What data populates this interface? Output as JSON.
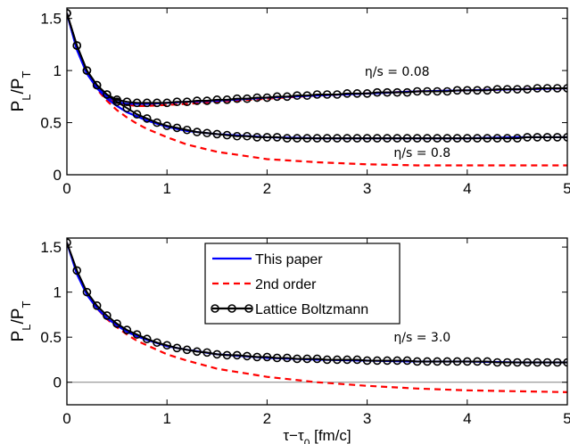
{
  "chart_data": [
    {
      "type": "line",
      "xlim": [
        0,
        5
      ],
      "ylim": [
        0,
        1.6
      ],
      "x_ticks": [
        "0",
        "1",
        "2",
        "3",
        "4",
        "5"
      ],
      "y_ticks": [
        "0",
        "0.5",
        "1",
        "1.5"
      ],
      "xlabel": "",
      "ylabel": "P_L/P_T",
      "grid": false,
      "annotations": [
        {
          "text": "η/s = 0.08",
          "x": 3.3,
          "y": 0.95
        },
        {
          "text": "η/s = 0.8",
          "x": 3.55,
          "y": 0.17
        }
      ],
      "series": [
        {
          "label": "η/s = 0.08",
          "role": "lattice",
          "x": [
            0,
            0.1,
            0.2,
            0.3,
            0.4,
            0.5,
            0.6,
            0.7,
            0.8,
            0.9,
            1.0,
            1.1,
            1.2,
            1.3,
            1.4,
            1.5,
            1.6,
            1.7,
            1.8,
            1.9,
            2.0,
            2.1,
            2.2,
            2.3,
            2.4,
            2.5,
            2.6,
            2.7,
            2.8,
            2.9,
            3.0,
            3.1,
            3.2,
            3.3,
            3.4,
            3.5,
            3.6,
            3.7,
            3.8,
            3.9,
            4.0,
            4.1,
            4.2,
            4.3,
            4.4,
            4.5,
            4.6,
            4.7,
            4.8,
            4.9,
            5.0
          ],
          "y": [
            1.55,
            1.24,
            1.0,
            0.86,
            0.77,
            0.72,
            0.7,
            0.69,
            0.69,
            0.69,
            0.69,
            0.7,
            0.7,
            0.71,
            0.71,
            0.72,
            0.72,
            0.73,
            0.73,
            0.74,
            0.74,
            0.75,
            0.75,
            0.76,
            0.76,
            0.77,
            0.77,
            0.77,
            0.78,
            0.78,
            0.78,
            0.79,
            0.79,
            0.79,
            0.79,
            0.8,
            0.8,
            0.8,
            0.8,
            0.81,
            0.81,
            0.81,
            0.81,
            0.82,
            0.82,
            0.82,
            0.82,
            0.83,
            0.83,
            0.83,
            0.83
          ]
        },
        {
          "label": "η/s = 0.08",
          "role": "this_paper",
          "x": [
            0,
            0.1,
            0.2,
            0.3,
            0.4,
            0.5,
            0.6,
            0.7,
            0.8,
            1.0,
            1.2,
            1.5,
            2.0,
            2.5,
            3.0,
            3.5,
            4.0,
            4.5,
            5.0
          ],
          "y": [
            1.55,
            1.2,
            0.97,
            0.84,
            0.75,
            0.7,
            0.68,
            0.68,
            0.68,
            0.69,
            0.7,
            0.71,
            0.74,
            0.76,
            0.78,
            0.8,
            0.81,
            0.82,
            0.83
          ]
        },
        {
          "label": "η/s = 0.08",
          "role": "second_order",
          "x": [
            0,
            0.1,
            0.2,
            0.3,
            0.4,
            0.5,
            0.6,
            0.7,
            0.8,
            1.0,
            1.2,
            1.5,
            2.0,
            2.5,
            3.0,
            3.5,
            4.0,
            4.5,
            5.0
          ],
          "y": [
            1.55,
            1.22,
            0.98,
            0.84,
            0.74,
            0.69,
            0.67,
            0.66,
            0.66,
            0.67,
            0.68,
            0.7,
            0.73,
            0.76,
            0.78,
            0.8,
            0.81,
            0.82,
            0.83
          ]
        },
        {
          "label": "η/s = 0.8",
          "role": "lattice",
          "x": [
            0,
            0.1,
            0.2,
            0.3,
            0.4,
            0.5,
            0.6,
            0.7,
            0.8,
            0.9,
            1.0,
            1.1,
            1.2,
            1.3,
            1.4,
            1.5,
            1.6,
            1.7,
            1.8,
            1.9,
            2.0,
            2.1,
            2.2,
            2.3,
            2.4,
            2.5,
            2.6,
            2.7,
            2.8,
            2.9,
            3.0,
            3.1,
            3.2,
            3.3,
            3.4,
            3.5,
            3.6,
            3.7,
            3.8,
            3.9,
            4.0,
            4.1,
            4.2,
            4.3,
            4.4,
            4.5,
            4.6,
            4.7,
            4.8,
            4.9,
            5.0
          ],
          "y": [
            1.55,
            1.24,
            1.0,
            0.86,
            0.77,
            0.7,
            0.64,
            0.58,
            0.54,
            0.5,
            0.47,
            0.45,
            0.43,
            0.41,
            0.4,
            0.39,
            0.38,
            0.37,
            0.37,
            0.36,
            0.36,
            0.36,
            0.35,
            0.35,
            0.35,
            0.35,
            0.35,
            0.35,
            0.35,
            0.35,
            0.35,
            0.35,
            0.35,
            0.35,
            0.35,
            0.35,
            0.35,
            0.35,
            0.35,
            0.35,
            0.35,
            0.35,
            0.35,
            0.35,
            0.35,
            0.35,
            0.36,
            0.36,
            0.36,
            0.36,
            0.36
          ]
        },
        {
          "label": "η/s = 0.8",
          "role": "this_paper",
          "x": [
            0,
            0.1,
            0.2,
            0.3,
            0.4,
            0.5,
            0.6,
            0.7,
            0.8,
            1.0,
            1.2,
            1.5,
            2.0,
            2.5,
            3.0,
            3.5,
            4.0,
            4.5,
            5.0
          ],
          "y": [
            1.55,
            1.2,
            0.97,
            0.83,
            0.73,
            0.66,
            0.6,
            0.56,
            0.52,
            0.46,
            0.42,
            0.39,
            0.36,
            0.35,
            0.35,
            0.35,
            0.35,
            0.36,
            0.36
          ]
        },
        {
          "label": "η/s = 0.8",
          "role": "second_order",
          "x": [
            0,
            0.1,
            0.2,
            0.3,
            0.4,
            0.5,
            0.6,
            0.7,
            0.8,
            1.0,
            1.2,
            1.5,
            2.0,
            2.5,
            3.0,
            3.5,
            4.0,
            4.5,
            5.0
          ],
          "y": [
            1.55,
            1.22,
            0.98,
            0.82,
            0.71,
            0.62,
            0.55,
            0.49,
            0.44,
            0.36,
            0.29,
            0.22,
            0.15,
            0.12,
            0.1,
            0.09,
            0.09,
            0.09,
            0.09
          ]
        }
      ]
    },
    {
      "type": "line",
      "xlim": [
        0,
        5
      ],
      "ylim": [
        -0.25,
        1.6
      ],
      "x_ticks": [
        "0",
        "1",
        "2",
        "3",
        "4",
        "5"
      ],
      "y_ticks": [
        "0",
        "0.5",
        "1",
        "1.5"
      ],
      "xlabel": "τ−τ_0 [fm/c]",
      "ylabel": "P_L/P_T",
      "grid": false,
      "zero_line": true,
      "legend": {
        "position": "top-center",
        "entries": [
          "This paper",
          "2nd order",
          "Lattice Boltzmann"
        ]
      },
      "annotations": [
        {
          "text": "η/s = 3.0",
          "x": 3.55,
          "y": 0.45
        }
      ],
      "series": [
        {
          "label": "η/s = 3.0",
          "role": "lattice",
          "x": [
            0,
            0.1,
            0.2,
            0.3,
            0.4,
            0.5,
            0.6,
            0.7,
            0.8,
            0.9,
            1.0,
            1.1,
            1.2,
            1.3,
            1.4,
            1.5,
            1.6,
            1.7,
            1.8,
            1.9,
            2.0,
            2.1,
            2.2,
            2.3,
            2.4,
            2.5,
            2.6,
            2.7,
            2.8,
            2.9,
            3.0,
            3.1,
            3.2,
            3.3,
            3.4,
            3.5,
            3.6,
            3.7,
            3.8,
            3.9,
            4.0,
            4.1,
            4.2,
            4.3,
            4.4,
            4.5,
            4.6,
            4.7,
            4.8,
            4.9,
            5.0
          ],
          "y": [
            1.55,
            1.24,
            1.0,
            0.85,
            0.74,
            0.65,
            0.58,
            0.53,
            0.48,
            0.44,
            0.41,
            0.38,
            0.36,
            0.34,
            0.33,
            0.31,
            0.3,
            0.3,
            0.29,
            0.28,
            0.28,
            0.27,
            0.27,
            0.26,
            0.26,
            0.26,
            0.25,
            0.25,
            0.25,
            0.25,
            0.24,
            0.24,
            0.24,
            0.24,
            0.24,
            0.23,
            0.23,
            0.23,
            0.23,
            0.23,
            0.23,
            0.23,
            0.23,
            0.22,
            0.22,
            0.22,
            0.22,
            0.22,
            0.22,
            0.22,
            0.22
          ]
        },
        {
          "label": "η/s = 3.0",
          "role": "this_paper",
          "x": [
            0,
            0.1,
            0.2,
            0.3,
            0.4,
            0.5,
            0.6,
            0.7,
            0.8,
            1.0,
            1.2,
            1.5,
            2.0,
            2.5,
            3.0,
            3.5,
            4.0,
            4.5,
            5.0
          ],
          "y": [
            1.55,
            1.2,
            0.97,
            0.82,
            0.71,
            0.63,
            0.56,
            0.51,
            0.47,
            0.4,
            0.36,
            0.31,
            0.27,
            0.25,
            0.24,
            0.23,
            0.23,
            0.22,
            0.22
          ]
        },
        {
          "label": "η/s = 3.0",
          "role": "second_order",
          "x": [
            0,
            0.1,
            0.2,
            0.3,
            0.4,
            0.5,
            0.6,
            0.7,
            0.8,
            1.0,
            1.2,
            1.5,
            2.0,
            2.5,
            3.0,
            3.5,
            4.0,
            4.5,
            5.0
          ],
          "y": [
            1.55,
            1.22,
            0.98,
            0.82,
            0.7,
            0.61,
            0.53,
            0.46,
            0.41,
            0.31,
            0.24,
            0.15,
            0.06,
            0.0,
            -0.04,
            -0.07,
            -0.09,
            -0.1,
            -0.11
          ]
        }
      ]
    }
  ],
  "styles": {
    "this_paper": {
      "color": "#0000ff",
      "dash": ""
    },
    "second_order": {
      "color": "#ff0000",
      "dash": "7,5"
    },
    "lattice": {
      "color": "#000000",
      "dash": ""
    }
  },
  "legend_labels": {
    "this_paper": "This paper",
    "second_order": "2nd order",
    "lattice": "Lattice Boltzmann"
  }
}
